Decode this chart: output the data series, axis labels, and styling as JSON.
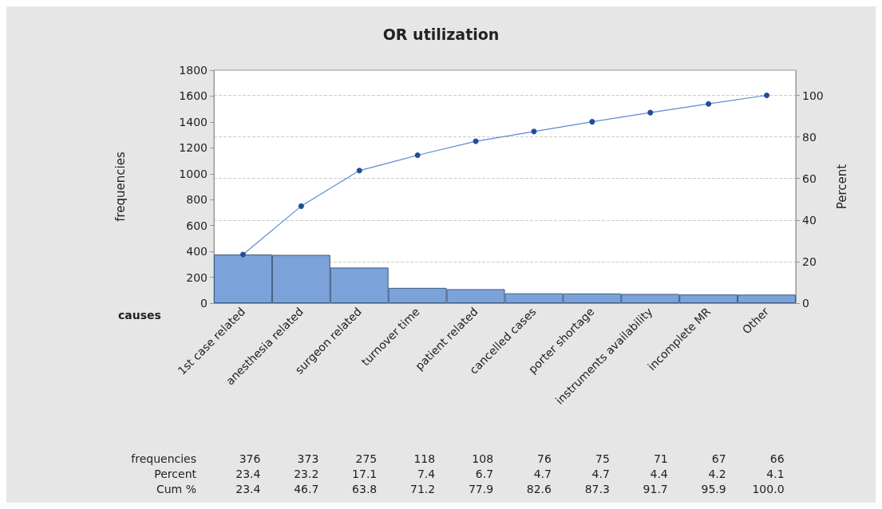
{
  "chart_data": {
    "type": "bar",
    "title": "OR utilization",
    "xlabel": "causes",
    "ylabel": "frequencies",
    "y2label": "Percent",
    "categories": [
      "1st case related",
      "anesthesia related",
      "surgeon related",
      "turnover time",
      "patient related",
      "cancelled cases",
      "porter shortage",
      "instruments availability",
      "incomplete MR",
      "Other"
    ],
    "series": [
      {
        "color": "#7ba3d9",
        "values": [
          376,
          373,
          275,
          118,
          108,
          76,
          75,
          71,
          67,
          66
        ],
        "value_labels": [
          "376",
          "373",
          "275",
          "118",
          "108",
          "76",
          "75",
          "71",
          "67",
          "66"
        ]
      },
      {
        "type": "line",
        "axis": "y2",
        "color": "#1f4e9a",
        "values": [
          23.4,
          46.7,
          63.8,
          71.2,
          77.9,
          82.6,
          87.3,
          91.7,
          95.9,
          100.0
        ],
        "value_labels": [
          "23.4",
          "46.7",
          "63.8",
          "71.2",
          "77.9",
          "82.6",
          "87.3",
          "91.7",
          "95.9",
          "100.0"
        ]
      }
    ],
    "annotations": [
      "frequencies",
      "Cum %",
      "Percent",
      "23.4",
      "23.2",
      "17.1",
      "7.4",
      "6.7",
      "4.7",
      "4.7",
      "4.4",
      "4.2",
      "4.1"
    ],
    "marker": "circle",
    "ylim": [
      0,
      1800
    ],
    "yticks": [
      0,
      200,
      400,
      600,
      800,
      1000,
      1200,
      1400,
      1600,
      1800
    ],
    "y2lim": [
      0,
      112.1
    ],
    "y2ticks": [
      0,
      20,
      40,
      60,
      80,
      100
    ],
    "grid": "y2"
  }
}
